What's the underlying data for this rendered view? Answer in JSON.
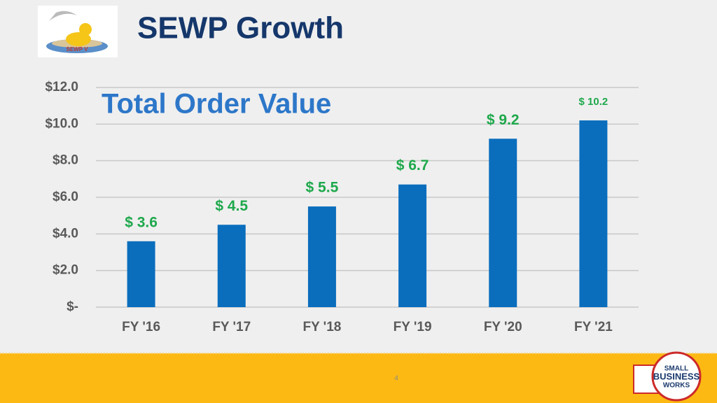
{
  "slide": {
    "title": "SEWP Growth",
    "page_number": "4",
    "logo_text": "SEWP V",
    "badge_text": [
      "SMALL",
      "BUSINESS",
      "WORKS"
    ]
  },
  "chart_data": {
    "type": "bar",
    "title": "Total Order Value",
    "categories": [
      "FY '16",
      "FY '17",
      "FY '18",
      "FY '19",
      "FY '20",
      "FY '21"
    ],
    "values": [
      3.6,
      4.5,
      5.5,
      6.7,
      9.2,
      10.2
    ],
    "value_labels": [
      "$ 3.6",
      "$ 4.5",
      "$ 5.5",
      "$ 6.7",
      "$ 9.2",
      "$ 10.2"
    ],
    "color": "#0a6ebd",
    "label_color": "#1ea84b",
    "ylim": [
      0,
      12
    ],
    "yticks": [
      {
        "value": 0,
        "label": "$-"
      },
      {
        "value": 2,
        "label": "$2.0"
      },
      {
        "value": 4,
        "label": "$4.0"
      },
      {
        "value": 6,
        "label": "$6.0"
      },
      {
        "value": 8,
        "label": "$8.0"
      },
      {
        "value": 10,
        "label": "$10.0"
      },
      {
        "value": 12,
        "label": "$12.0"
      }
    ],
    "grid": true
  }
}
